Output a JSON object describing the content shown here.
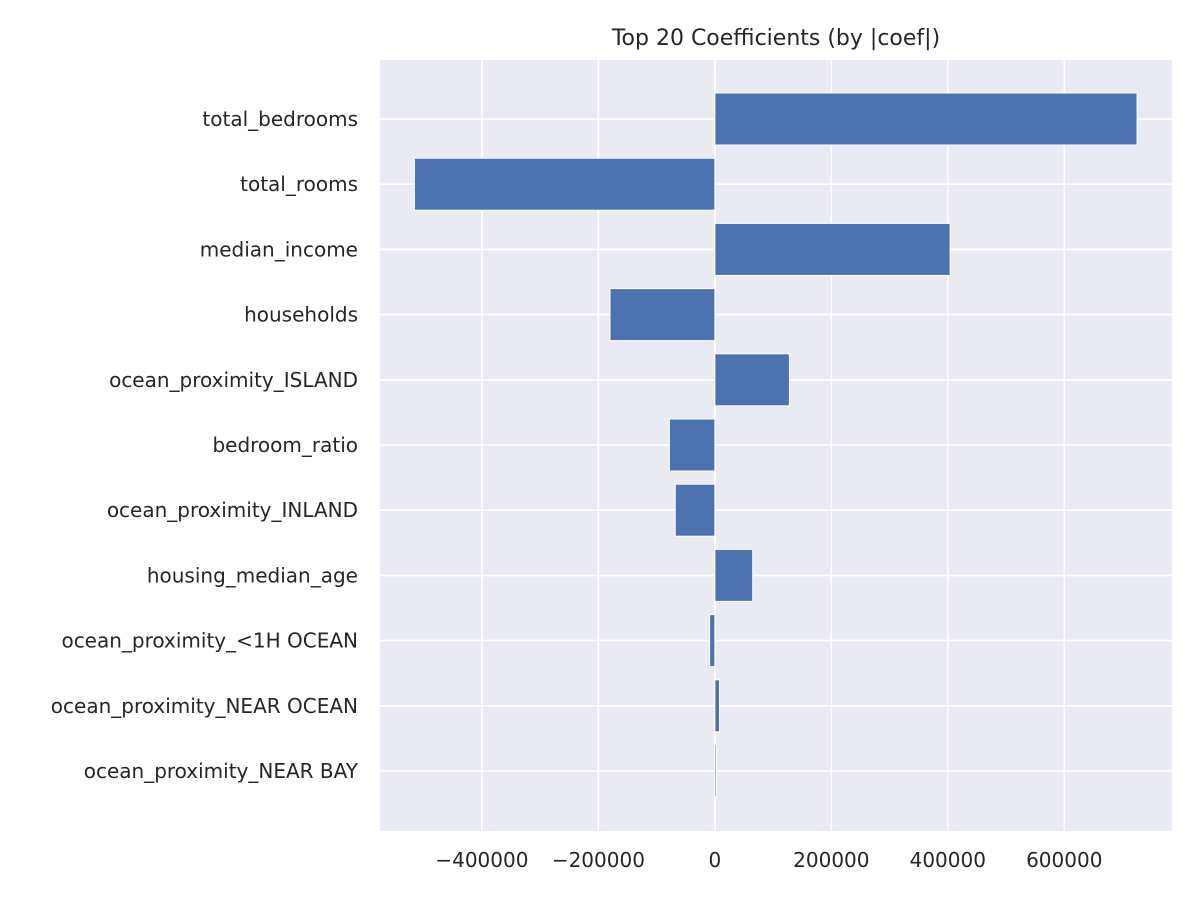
{
  "chart_data": {
    "type": "bar",
    "orientation": "horizontal",
    "title": "Top 20 Coefficients (by |coef|)",
    "xlabel": "",
    "ylabel": "",
    "categories": [
      "total_bedrooms",
      "total_rooms",
      "median_income",
      "households",
      "ocean_proximity_ISLAND",
      "bedroom_ratio",
      "ocean_proximity_INLAND",
      "housing_median_age",
      "ocean_proximity_<1H OCEAN",
      "ocean_proximity_NEAR OCEAN",
      "ocean_proximity_NEAR BAY"
    ],
    "values": [
      725000,
      -516000,
      404000,
      -180000,
      128000,
      -78000,
      -68000,
      65000,
      -9000,
      8000,
      2500
    ],
    "xlim": [
      -575000,
      785000
    ],
    "xticks": [
      -400000,
      -200000,
      0,
      200000,
      400000,
      600000
    ],
    "xtick_labels": [
      "−400000",
      "−200000",
      "0",
      "200000",
      "400000",
      "600000"
    ],
    "bar_color": "#4c72b0",
    "background_color": "#eaeaf2",
    "grid": true
  }
}
